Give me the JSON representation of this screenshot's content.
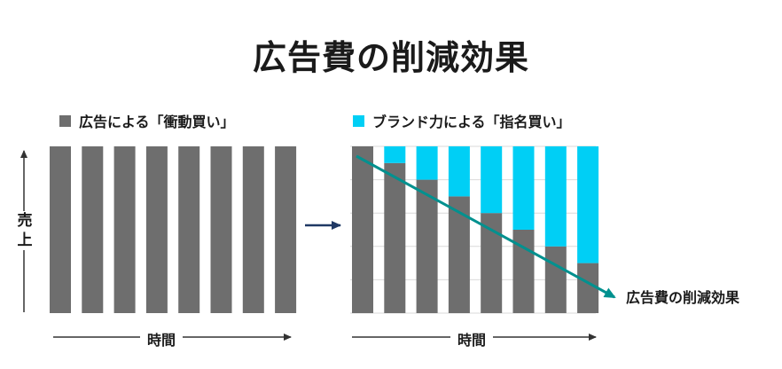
{
  "title": "広告費の削減効果",
  "colors": {
    "gray": "#6e6e6e",
    "cyan": "#00cff5",
    "teal": "#00918f",
    "navy": "#1f3864",
    "arrow": "#333333"
  },
  "left_panel": {
    "legend": "広告による「衝動買い」",
    "ylabel": "売上",
    "xlabel": "時間",
    "bars": 8
  },
  "right_panel": {
    "legend": "ブランド力による「指名買い」",
    "xlabel": "時間",
    "annotation": "広告費の削減効果"
  },
  "chart_data": [
    {
      "type": "bar",
      "series": [
        {
          "name": "広告による「衝動買い」",
          "values": [
            100,
            100,
            100,
            100,
            100,
            100,
            100,
            100
          ]
        }
      ],
      "ylabel": "売上",
      "xlabel": "時間",
      "ylim": [
        0,
        100
      ]
    },
    {
      "type": "bar",
      "stacked": true,
      "series": [
        {
          "name": "広告による「衝動買い」",
          "values": [
            100,
            90,
            80,
            70,
            60,
            50,
            40,
            30
          ]
        },
        {
          "name": "ブランド力による「指名買い」",
          "values": [
            0,
            10,
            20,
            30,
            40,
            50,
            60,
            70
          ]
        }
      ],
      "xlabel": "時間",
      "ylim": [
        0,
        100
      ],
      "grid": true
    }
  ]
}
